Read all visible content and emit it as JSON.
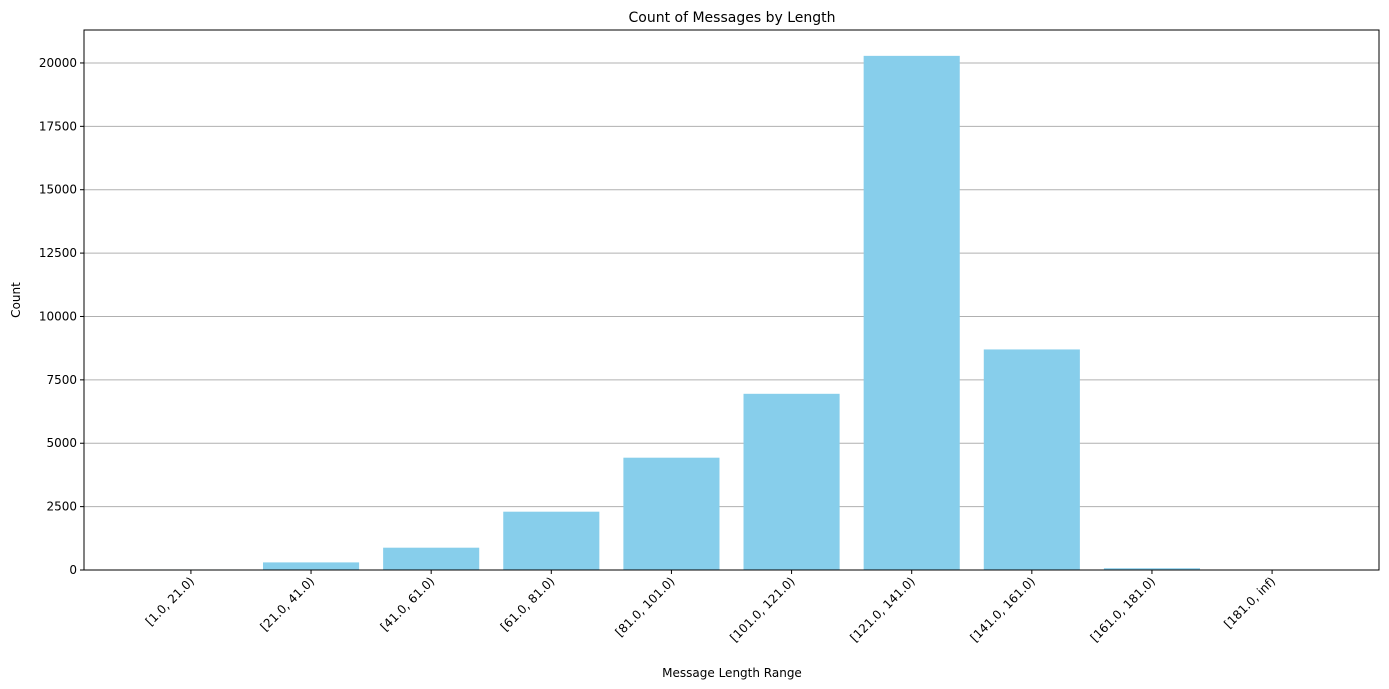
{
  "chart_data": {
    "type": "bar",
    "title": "Count of Messages by Length",
    "xlabel": "Message Length Range",
    "ylabel": "Count",
    "categories": [
      "[1.0, 21.0)",
      "[21.0, 41.0)",
      "[41.0, 61.0)",
      "[61.0, 81.0)",
      "[81.0, 101.0)",
      "[101.0, 121.0)",
      "[121.0, 141.0)",
      "[141.0, 161.0)",
      "[161.0, 181.0)",
      "[181.0, inf)"
    ],
    "values": [
      20,
      300,
      880,
      2300,
      4430,
      6950,
      20280,
      8700,
      70,
      15
    ],
    "ylim": [
      0,
      21300
    ],
    "yticks": [
      0,
      2500,
      5000,
      7500,
      10000,
      12500,
      15000,
      17500,
      20000
    ],
    "ytick_labels": [
      "0",
      "2500",
      "5000",
      "7500",
      "10000",
      "12500",
      "15000",
      "17500",
      "20000"
    ],
    "bar_color": "#87ceeb",
    "grid": "y",
    "legend": "none"
  }
}
